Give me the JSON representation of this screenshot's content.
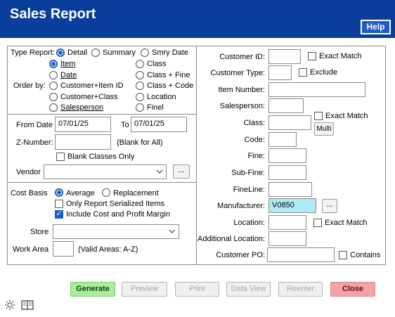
{
  "header": {
    "title": "Sales Report",
    "help_label": "Help"
  },
  "type_report": {
    "label": "Type Report:",
    "options": [
      {
        "label": "Detail",
        "selected": true
      },
      {
        "label": "Summary",
        "selected": false
      },
      {
        "label": "Smry Date",
        "selected": false
      }
    ]
  },
  "order_by": {
    "label": "Order by:",
    "options": [
      {
        "label": "Item",
        "selected": true
      },
      {
        "label": "Date",
        "selected": false
      },
      {
        "label": "Customer+Item ID",
        "selected": false
      },
      {
        "label": "Customer+Class",
        "selected": false
      },
      {
        "label": "Salesperson",
        "selected": false
      },
      {
        "label": "Class",
        "selected": false
      },
      {
        "label": "Class + Fine",
        "selected": false
      },
      {
        "label": "Class + Code",
        "selected": false
      },
      {
        "label": "Location",
        "selected": false
      },
      {
        "label": "Finel",
        "selected": false
      }
    ]
  },
  "dates": {
    "from_label": "From Date",
    "from_value": "07/01/25",
    "to_label": "To",
    "to_value": "07/01/25",
    "znumber_label": "Z-Number:",
    "znumber_value": "",
    "znumber_hint": "(Blank for All)",
    "blank_classes_label": "Blank Classes Only",
    "blank_classes_checked": false,
    "vendor_label": "Vendor",
    "vendor_value": "",
    "browse_label": "..."
  },
  "cost": {
    "basis_label": "Cost Basis",
    "average_label": "Average",
    "average_selected": true,
    "replacement_label": "Replacement",
    "replacement_selected": false,
    "serialized_label": "Only Report Serialized Items",
    "serialized_checked": false,
    "include_cost_label": "Include Cost and Profit Margin",
    "include_cost_checked": true,
    "store_label": "Store",
    "store_value": "",
    "work_area_label": "Work Area",
    "work_area_value": "",
    "work_area_hint": "(Valid Areas: A-Z)"
  },
  "right": {
    "customer_id_label": "Customer ID:",
    "customer_id_value": "",
    "exact_match_label": "Exact Match",
    "customer_type_label": "Customer Type:",
    "customer_type_value": "",
    "exclude_label": "Exclude",
    "item_number_label": "Item Number:",
    "item_number_value": "",
    "salesperson_label": "Salesperson:",
    "salesperson_value": "",
    "class_label": "Class:",
    "class_value": "",
    "class_exact_label": "Exact Match",
    "multi_label": "Multi",
    "code_label": "Code:",
    "code_value": "",
    "fine_label": "Fine:",
    "fine_value": "",
    "subfine_label": "Sub-Fine:",
    "subfine_value": "",
    "fineline_label": "FineLine:",
    "fineline_value": "",
    "manufacturer_label": "Manufacturer:",
    "manufacturer_value": "V0850",
    "manufacturer_browse": "...",
    "location_label": "Location:",
    "location_value": "",
    "location_exact_label": "Exact Match",
    "addl_location_label": "Additional Location:",
    "addl_location_value": "",
    "customer_po_label": "Customer PO:",
    "customer_po_value": "",
    "contains_label": "Contains"
  },
  "buttons": {
    "generate": "Generate",
    "preview": "Preview",
    "print": "Print",
    "data_view": "Data View",
    "reenter": "Reenter",
    "close": "Close"
  },
  "colors": {
    "header": "#0a3e9c",
    "highlight": "#aee9f5",
    "generate": "#a9ef9b",
    "close": "#f4a3a3"
  }
}
